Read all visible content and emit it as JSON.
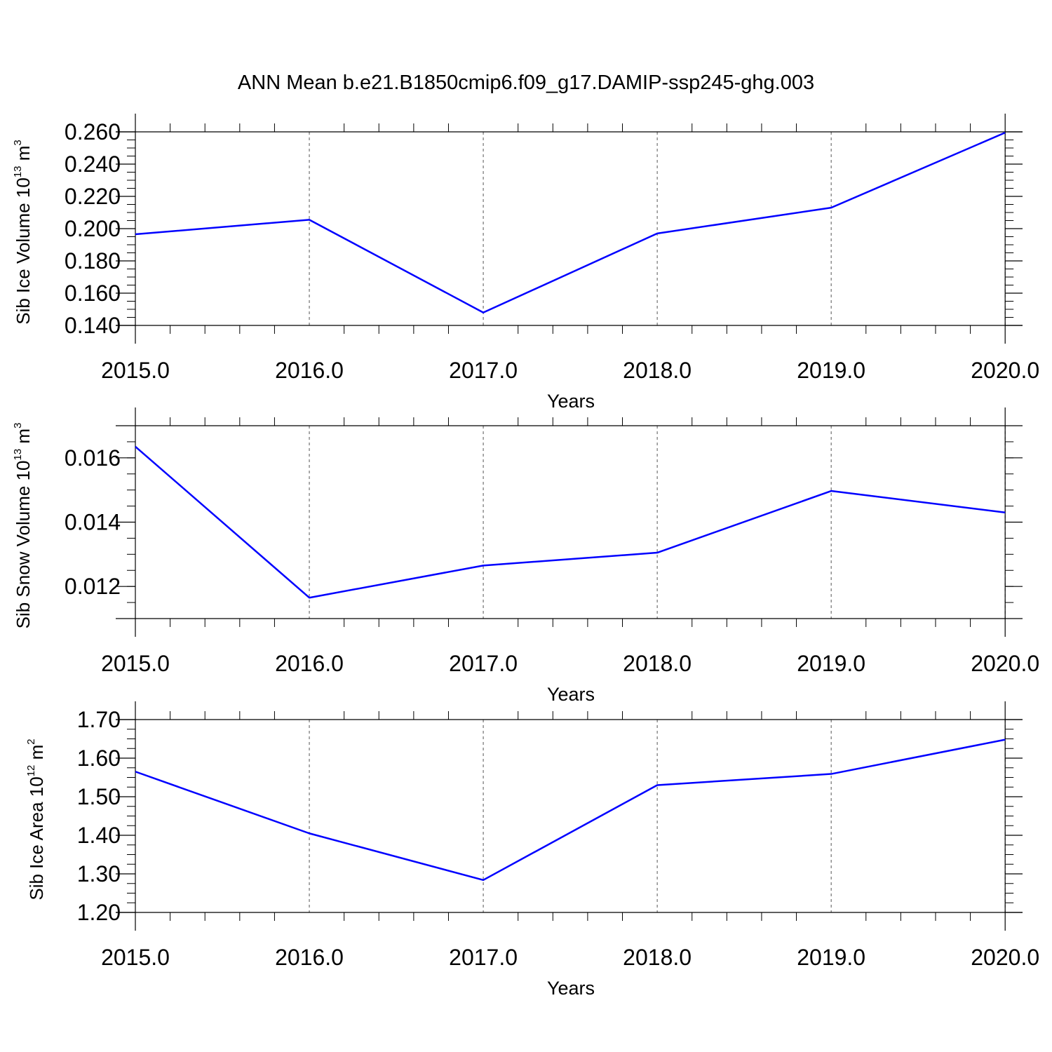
{
  "title": "ANN Mean b.e21.B1850cmip6.f09_g17.DAMIP-ssp245-ghg.003",
  "colors": {
    "line": "#0000ff",
    "axis": "#000000",
    "grid": "#555555"
  },
  "chart_data": [
    {
      "type": "line",
      "xlabel": "Years",
      "ylabel": {
        "text": "Sib Ice Volume 10",
        "exponent": "13",
        "unit": " m",
        "unit_exponent": "3"
      },
      "x": [
        2015,
        2016,
        2017,
        2018,
        2019,
        2020
      ],
      "values": [
        0.1965,
        0.2055,
        0.148,
        0.197,
        0.213,
        0.2595
      ],
      "xlim": [
        2015,
        2020.1
      ],
      "ylim": [
        0.14,
        0.26
      ],
      "xticks": [
        "2015.0",
        "2016.0",
        "2017.0",
        "2018.0",
        "2019.0",
        "2020.0"
      ],
      "yticks": [
        "0.140",
        "0.160",
        "0.180",
        "0.200",
        "0.220",
        "0.240",
        "0.260"
      ],
      "ytick_values": [
        0.14,
        0.16,
        0.18,
        0.2,
        0.22,
        0.24,
        0.26
      ],
      "grid": "vertical dashed at years"
    },
    {
      "type": "line",
      "xlabel": "Years",
      "ylabel": {
        "text": "Sib Snow Volume 10",
        "exponent": "13",
        "unit": " m",
        "unit_exponent": "3"
      },
      "x": [
        2015,
        2016,
        2017,
        2018,
        2019,
        2020
      ],
      "values": [
        0.01635,
        0.01165,
        0.01265,
        0.01305,
        0.01497,
        0.0143
      ],
      "xlim": [
        2015,
        2020.1
      ],
      "ylim": [
        0.011,
        0.017
      ],
      "xticks": [
        "2015.0",
        "2016.0",
        "2017.0",
        "2018.0",
        "2019.0",
        "2020.0"
      ],
      "yticks": [
        "0.012",
        "0.014",
        "0.016"
      ],
      "ytick_values": [
        0.012,
        0.014,
        0.016
      ],
      "grid": "vertical dashed at years"
    },
    {
      "type": "line",
      "xlabel": "Years",
      "ylabel": {
        "text": "Sib Ice Area 10",
        "exponent": "12",
        "unit": " m",
        "unit_exponent": "2"
      },
      "x": [
        2015,
        2016,
        2017,
        2018,
        2019,
        2020
      ],
      "values": [
        1.565,
        1.405,
        1.284,
        1.53,
        1.559,
        1.648
      ],
      "xlim": [
        2015,
        2020.1
      ],
      "ylim": [
        1.2,
        1.7
      ],
      "xticks": [
        "2015.0",
        "2016.0",
        "2017.0",
        "2018.0",
        "2019.0",
        "2020.0"
      ],
      "yticks": [
        "1.20",
        "1.30",
        "1.40",
        "1.50",
        "1.60",
        "1.70"
      ],
      "ytick_values": [
        1.2,
        1.3,
        1.4,
        1.5,
        1.6,
        1.7
      ],
      "grid": "vertical dashed at years"
    }
  ]
}
